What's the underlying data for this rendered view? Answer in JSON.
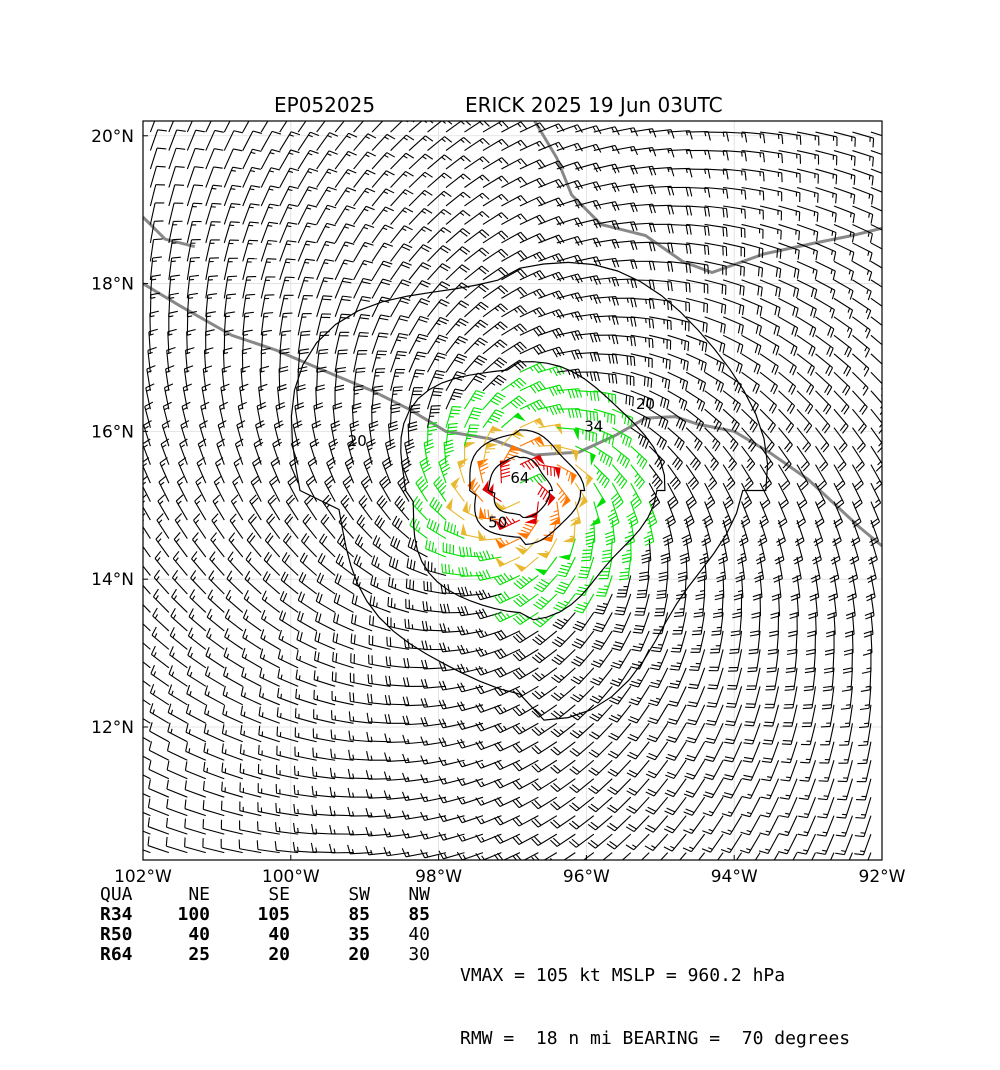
{
  "title": {
    "left": "EP052025",
    "right": "ERICK 2025 19 Jun 03UTC"
  },
  "axes": {
    "lon_range": [
      -102,
      -92
    ],
    "lat_range": [
      10.2,
      20.2
    ],
    "x_ticks": [
      {
        "value": -102,
        "label": "102°W"
      },
      {
        "value": -100,
        "label": "100°W"
      },
      {
        "value": -98,
        "label": "98°W"
      },
      {
        "value": -96,
        "label": "96°W"
      },
      {
        "value": -94,
        "label": "94°W"
      },
      {
        "value": -92,
        "label": "92°W"
      }
    ],
    "y_ticks": [
      {
        "value": 12,
        "label": "12°N"
      },
      {
        "value": 14,
        "label": "14°N"
      },
      {
        "value": 16,
        "label": "16°N"
      },
      {
        "value": 18,
        "label": "18°N"
      },
      {
        "value": 20,
        "label": "20°N"
      }
    ],
    "grid": true
  },
  "storm": {
    "center": {
      "lon": -96.9,
      "lat": 15.2
    },
    "vmax_kt": 105,
    "rmw_nmi": 18,
    "bearing_deg": 70
  },
  "contours": [
    {
      "level": "20",
      "labels": [
        "20"
      ]
    },
    {
      "level": "34",
      "labels": [
        "34"
      ]
    },
    {
      "level": "50",
      "labels": [
        "50"
      ]
    },
    {
      "level": "64",
      "labels": [
        "64"
      ]
    }
  ],
  "wind_colors": {
    "lt34": "#000000",
    "r34": "#00e000",
    "r50": "#e8b830",
    "r64": "#ff7700",
    "gt64": "#e00000",
    "coast": "#888888"
  },
  "wind_radii_table": {
    "header": [
      "QUA",
      "NE",
      "SE",
      "SW",
      "NW"
    ],
    "rows": [
      {
        "label": "R34",
        "values": [
          "100",
          "105",
          "85",
          "85"
        ]
      },
      {
        "label": "R50",
        "values": [
          "40",
          "40",
          "35",
          "40"
        ]
      },
      {
        "label": "R64",
        "values": [
          "25",
          "20",
          "20",
          "30"
        ]
      }
    ]
  },
  "summary": {
    "line1": "VMAX = 105 kt MSLP = 960.2 hPa",
    "line2": "RMW =  18 n mi BEARING =  70 degrees"
  }
}
